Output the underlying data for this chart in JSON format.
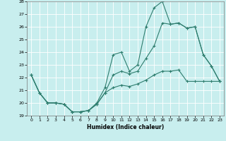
{
  "xlabel": "Humidex (Indice chaleur)",
  "xlim": [
    -0.5,
    23.5
  ],
  "ylim": [
    19,
    28
  ],
  "yticks": [
    19,
    20,
    21,
    22,
    23,
    24,
    25,
    26,
    27,
    28
  ],
  "xticks": [
    0,
    1,
    2,
    3,
    4,
    5,
    6,
    7,
    8,
    9,
    10,
    11,
    12,
    13,
    14,
    15,
    16,
    17,
    18,
    19,
    20,
    21,
    22,
    23
  ],
  "bg_color": "#c8eeee",
  "line_color": "#2e7d6e",
  "grid_color": "#ffffff",
  "line1_x": [
    0,
    1,
    2,
    3,
    4,
    5,
    6,
    7,
    8,
    9,
    10,
    11,
    12,
    13,
    14,
    15,
    16,
    17,
    18,
    19,
    20,
    21,
    22,
    23
  ],
  "line1_y": [
    22.2,
    20.8,
    20.0,
    20.0,
    19.9,
    19.3,
    19.3,
    19.4,
    20.0,
    21.2,
    23.8,
    24.0,
    22.5,
    23.0,
    26.0,
    27.5,
    28.0,
    26.2,
    26.3,
    25.9,
    26.0,
    23.8,
    22.9,
    21.7
  ],
  "line2_x": [
    0,
    1,
    2,
    3,
    4,
    5,
    6,
    7,
    8,
    9,
    10,
    11,
    12,
    13,
    14,
    15,
    16,
    17,
    18,
    19,
    20,
    21,
    22,
    23
  ],
  "line2_y": [
    22.2,
    20.8,
    20.0,
    20.0,
    19.9,
    19.3,
    19.3,
    19.4,
    19.9,
    20.8,
    22.2,
    22.5,
    22.3,
    22.5,
    23.5,
    24.5,
    26.3,
    26.2,
    26.3,
    25.9,
    26.0,
    23.8,
    22.9,
    21.7
  ],
  "line3_x": [
    0,
    1,
    2,
    3,
    4,
    5,
    6,
    7,
    8,
    9,
    10,
    11,
    12,
    13,
    14,
    15,
    16,
    17,
    18,
    19,
    20,
    21,
    22,
    23
  ],
  "line3_y": [
    22.2,
    20.8,
    20.0,
    20.0,
    19.9,
    19.3,
    19.3,
    19.4,
    19.9,
    20.8,
    21.2,
    21.4,
    21.3,
    21.5,
    21.8,
    22.2,
    22.5,
    22.5,
    22.6,
    21.7,
    21.7,
    21.7,
    21.7,
    21.7
  ]
}
